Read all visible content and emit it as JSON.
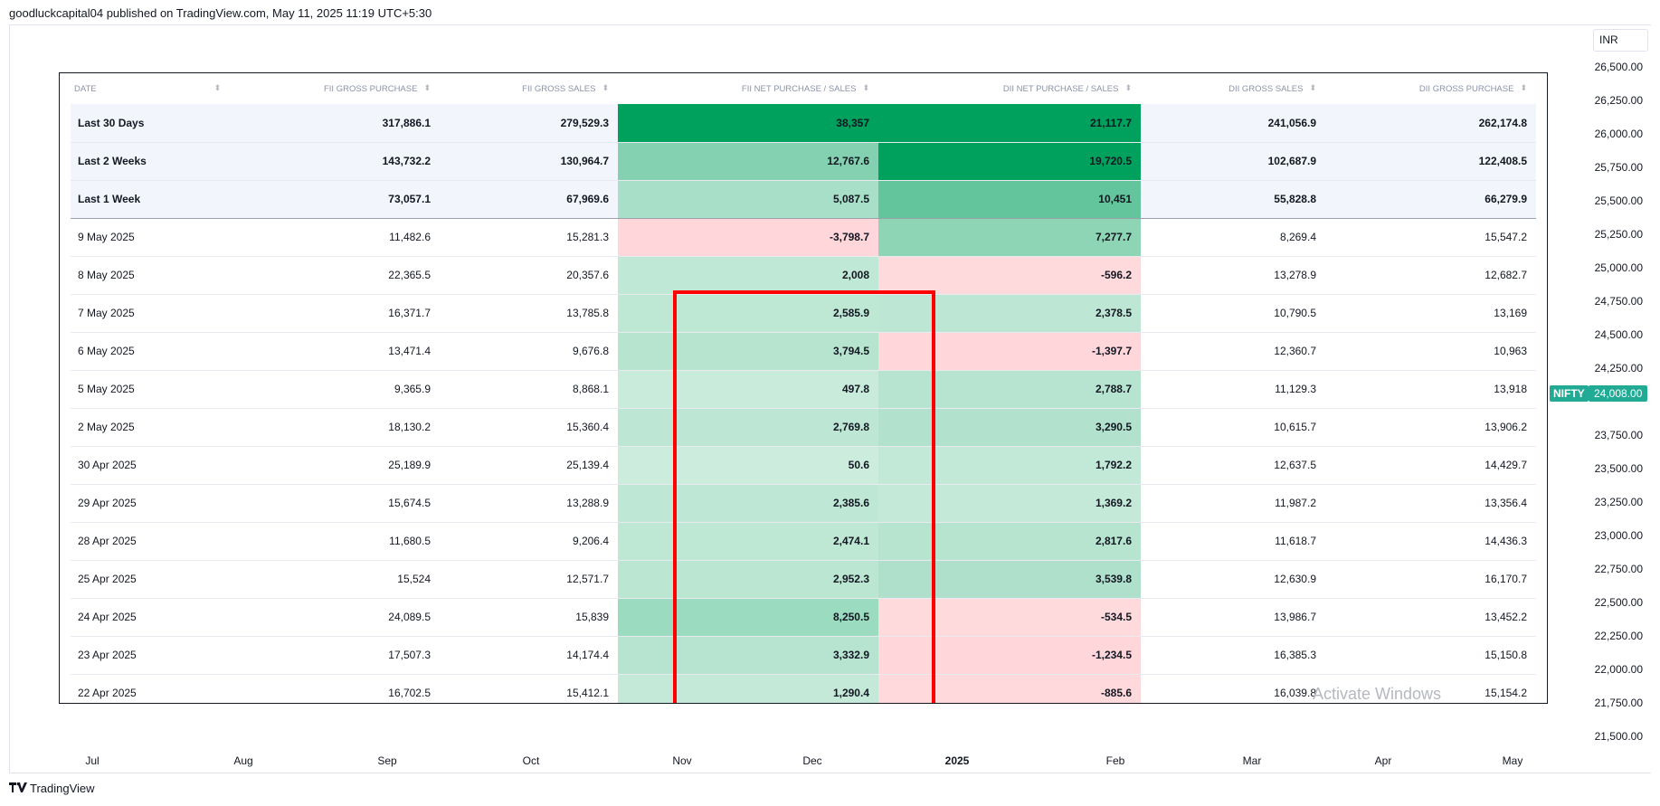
{
  "header": {
    "publish_line": "goodluckcapital04 published on TradingView.com, May 11, 2025 11:19 UTC+5:30"
  },
  "price_scale": {
    "currency": "INR",
    "labels": [
      "26,500.00",
      "26,250.00",
      "26,000.00",
      "25,750.00",
      "25,500.00",
      "25,250.00",
      "25,000.00",
      "24,750.00",
      "24,500.00",
      "24,250.00",
      "23,750.00",
      "23,500.00",
      "23,250.00",
      "23,000.00",
      "22,750.00",
      "22,500.00",
      "22,250.00",
      "22,000.00",
      "21,750.00",
      "21,500.00"
    ],
    "symbol": "NIFTY",
    "last_price": "24,008.00",
    "accent_color": "#22ab94"
  },
  "time_axis": {
    "labels": [
      "Jul",
      "Aug",
      "Sep",
      "Oct",
      "Nov",
      "Dec",
      "2025",
      "Feb",
      "Mar",
      "Apr",
      "May"
    ]
  },
  "table": {
    "columns": [
      "DATE",
      "FII GROSS PURCHASE",
      "FII GROSS SALES",
      "FII NET PURCHASE / SALES",
      "DII NET PURCHASE / SALES",
      "DII GROSS SALES",
      "DII GROSS PURCHASE"
    ],
    "sort_icon": "sort-arrows-icon",
    "summary_rows": [
      {
        "date": "Last 30 Days",
        "fii_gross_purchase": "317,886.1",
        "fii_gross_sales": "279,529.3",
        "fii_net": "38,357",
        "dii_net": "21,117.7",
        "dii_gross_sales": "241,056.9",
        "dii_gross_purchase": "262,174.8",
        "fii_net_color": "#00a15d",
        "dii_net_color": "#00a15d"
      },
      {
        "date": "Last 2 Weeks",
        "fii_gross_purchase": "143,732.2",
        "fii_gross_sales": "130,964.7",
        "fii_net": "12,767.6",
        "dii_net": "19,720.5",
        "dii_gross_sales": "102,687.9",
        "dii_gross_purchase": "122,408.5",
        "fii_net_color": "#83d1b0",
        "dii_net_color": "#00a15d"
      },
      {
        "date": "Last 1 Week",
        "fii_gross_purchase": "73,057.1",
        "fii_gross_sales": "67,969.6",
        "fii_net": "5,087.5",
        "dii_net": "10,451",
        "dii_gross_sales": "55,828.8",
        "dii_gross_purchase": "66,279.9",
        "fii_net_color": "#a8dfc8",
        "dii_net_color": "#63c59b"
      }
    ],
    "daily_rows": [
      {
        "date": "9 May 2025",
        "fii_gross_purchase": "11,482.6",
        "fii_gross_sales": "15,281.3",
        "fii_net": "-3,798.7",
        "dii_net": "7,277.7",
        "dii_gross_sales": "8,269.4",
        "dii_gross_purchase": "15,547.2",
        "fii_net_color": "#ffd6d9",
        "dii_net_color": "#8dd5b5"
      },
      {
        "date": "8 May 2025",
        "fii_gross_purchase": "22,365.5",
        "fii_gross_sales": "20,357.6",
        "fii_net": "2,008",
        "dii_net": "-596.2",
        "dii_gross_sales": "13,278.9",
        "dii_gross_purchase": "12,682.7",
        "fii_net_color": "#c0e8d6",
        "dii_net_color": "#ffdadd"
      },
      {
        "date": "7 May 2025",
        "fii_gross_purchase": "16,371.7",
        "fii_gross_sales": "13,785.8",
        "fii_net": "2,585.9",
        "dii_net": "2,378.5",
        "dii_gross_sales": "10,790.5",
        "dii_gross_purchase": "13,169",
        "fii_net_color": "#bee7d4",
        "dii_net_color": "#bde7d4"
      },
      {
        "date": "6 May 2025",
        "fii_gross_purchase": "13,471.4",
        "fii_gross_sales": "9,676.8",
        "fii_net": "3,794.5",
        "dii_net": "-1,397.7",
        "dii_gross_sales": "12,360.7",
        "dii_gross_purchase": "10,963",
        "fii_net_color": "#b6e4cf",
        "dii_net_color": "#ffd6d9"
      },
      {
        "date": "5 May 2025",
        "fii_gross_purchase": "9,365.9",
        "fii_gross_sales": "8,868.1",
        "fii_net": "497.8",
        "dii_net": "2,788.7",
        "dii_gross_sales": "11,129.3",
        "dii_gross_purchase": "13,918",
        "fii_net_color": "#c8ebdb",
        "dii_net_color": "#b7e4d0"
      },
      {
        "date": "2 May 2025",
        "fii_gross_purchase": "18,130.2",
        "fii_gross_sales": "15,360.4",
        "fii_net": "2,769.8",
        "dii_net": "3,290.5",
        "dii_gross_sales": "10,615.7",
        "dii_gross_purchase": "13,906.2",
        "fii_net_color": "#bde7d4",
        "dii_net_color": "#b2e2cd"
      },
      {
        "date": "30 Apr 2025",
        "fii_gross_purchase": "25,189.9",
        "fii_gross_sales": "25,139.4",
        "fii_net": "50.6",
        "dii_net": "1,792.2",
        "dii_gross_sales": "12,637.5",
        "dii_gross_purchase": "14,429.7",
        "fii_net_color": "#ccecdd",
        "dii_net_color": "#c2e8d7"
      },
      {
        "date": "29 Apr 2025",
        "fii_gross_purchase": "15,674.5",
        "fii_gross_sales": "13,288.9",
        "fii_net": "2,385.6",
        "dii_net": "1,369.2",
        "dii_gross_sales": "11,987.2",
        "dii_gross_purchase": "13,356.4",
        "fii_net_color": "#bfe7d5",
        "dii_net_color": "#c5e9d9"
      },
      {
        "date": "28 Apr 2025",
        "fii_gross_purchase": "11,680.5",
        "fii_gross_sales": "9,206.4",
        "fii_net": "2,474.1",
        "dii_net": "2,817.6",
        "dii_gross_sales": "11,618.7",
        "dii_gross_purchase": "14,436.3",
        "fii_net_color": "#bee7d4",
        "dii_net_color": "#b6e4cf"
      },
      {
        "date": "25 Apr 2025",
        "fii_gross_purchase": "15,524",
        "fii_gross_sales": "12,571.7",
        "fii_net": "2,952.3",
        "dii_net": "3,539.8",
        "dii_gross_sales": "12,630.9",
        "dii_gross_purchase": "16,170.7",
        "fii_net_color": "#bbe6d2",
        "dii_net_color": "#afe0cb"
      },
      {
        "date": "24 Apr 2025",
        "fii_gross_purchase": "24,089.5",
        "fii_gross_sales": "15,839",
        "fii_net": "8,250.5",
        "dii_net": "-534.5",
        "dii_gross_sales": "13,986.7",
        "dii_gross_purchase": "13,452.2",
        "fii_net_color": "#9bdbc0",
        "dii_net_color": "#ffdadd"
      },
      {
        "date": "23 Apr 2025",
        "fii_gross_purchase": "17,507.3",
        "fii_gross_sales": "14,174.4",
        "fii_net": "3,332.9",
        "dii_net": "-1,234.5",
        "dii_gross_sales": "16,385.3",
        "dii_gross_purchase": "15,150.8",
        "fii_net_color": "#b7e4d0",
        "dii_net_color": "#ffd7da"
      },
      {
        "date": "22 Apr 2025",
        "fii_gross_purchase": "16,702.5",
        "fii_gross_sales": "15,412.1",
        "fii_net": "1,290.4",
        "dii_net": "-885.6",
        "dii_gross_sales": "16,039.8",
        "dii_gross_purchase": "15,154.2",
        "fii_net_color": "#c4e9d8",
        "dii_net_color": "#ffd9dc"
      }
    ],
    "highlight_color": "#ff0000"
  },
  "overlay": {
    "watermark": "Activate Windows"
  },
  "footer": {
    "logo_text": "TradingView"
  }
}
